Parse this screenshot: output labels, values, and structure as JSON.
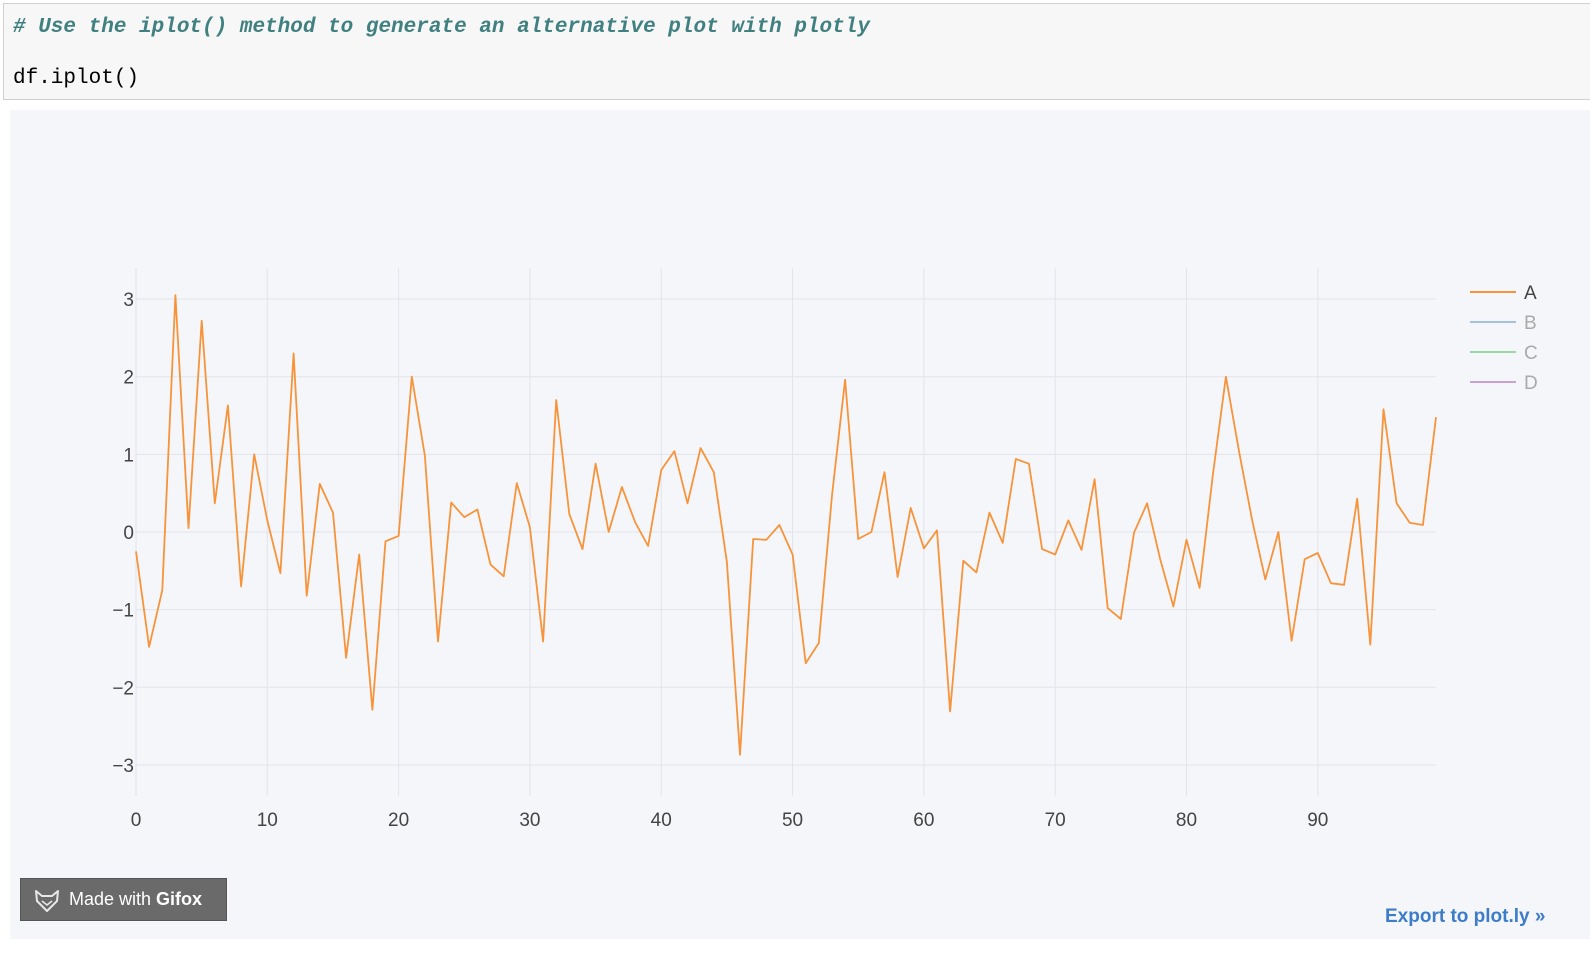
{
  "code": {
    "comment": "# Use the iplot() method to generate an alternative plot with plotly",
    "statement": "df.iplot()"
  },
  "colors": {
    "series_A": "#f7943b",
    "series_B": "#a6c1e0",
    "series_C": "#9ed5a6",
    "series_D": "#c9a1d4",
    "grid": "#e2e4ec",
    "plot_background": "#f5f6f9"
  },
  "watermark": {
    "label_prefix": "Made with",
    "label_brand": "Gifox",
    "icon": "fox-icon"
  },
  "export_link": "Export to plot.ly »",
  "chart_data": {
    "type": "line",
    "xlim": [
      0,
      99
    ],
    "ylim": [
      -3.4,
      3.4
    ],
    "x_ticks": [
      0,
      10,
      20,
      30,
      40,
      50,
      60,
      70,
      80,
      90
    ],
    "y_ticks": [
      3,
      2,
      1,
      0,
      -1,
      -2,
      -3
    ],
    "y_tick_labels": [
      "3",
      "2",
      "1",
      "0",
      "−1",
      "−2",
      "−3"
    ],
    "grid": true,
    "legend_position": "top-right",
    "legend": [
      {
        "name": "A",
        "active": true
      },
      {
        "name": "B",
        "active": false
      },
      {
        "name": "C",
        "active": false
      },
      {
        "name": "D",
        "active": false
      }
    ],
    "series": [
      {
        "name": "A",
        "x_start": 0,
        "values": [
          -0.25,
          -1.48,
          -0.75,
          3.05,
          0.05,
          2.72,
          0.37,
          1.63,
          -0.7,
          1.0,
          0.15,
          -0.53,
          2.3,
          -0.82,
          0.62,
          0.25,
          -1.62,
          -0.29,
          -2.29,
          -0.12,
          -0.05,
          2.0,
          0.98,
          -1.41,
          0.38,
          0.19,
          0.29,
          -0.42,
          -0.57,
          0.63,
          0.06,
          -1.41,
          1.7,
          0.23,
          -0.22,
          0.88,
          0.0,
          0.58,
          0.13,
          -0.18,
          0.8,
          1.04,
          0.37,
          1.08,
          0.77,
          -0.39,
          -2.87,
          -0.09,
          -0.1,
          0.09,
          -0.29,
          -1.69,
          -1.43,
          0.47,
          1.96,
          -0.09,
          0.0,
          0.77,
          -0.58,
          0.31,
          -0.21,
          0.02,
          -2.31,
          -0.37,
          -0.52,
          0.25,
          -0.14,
          0.94,
          0.88,
          -0.22,
          -0.29,
          0.15,
          -0.23,
          0.68,
          -0.98,
          -1.12,
          -0.01,
          0.37,
          -0.35,
          -0.96,
          -0.1,
          -0.72,
          0.73,
          2.0,
          1.04,
          0.15,
          -0.61,
          0.0,
          -1.4,
          -0.35,
          -0.27,
          -0.66,
          -0.68,
          0.43,
          -1.45,
          1.58,
          0.37,
          0.12,
          0.09,
          1.48
        ]
      }
    ]
  }
}
